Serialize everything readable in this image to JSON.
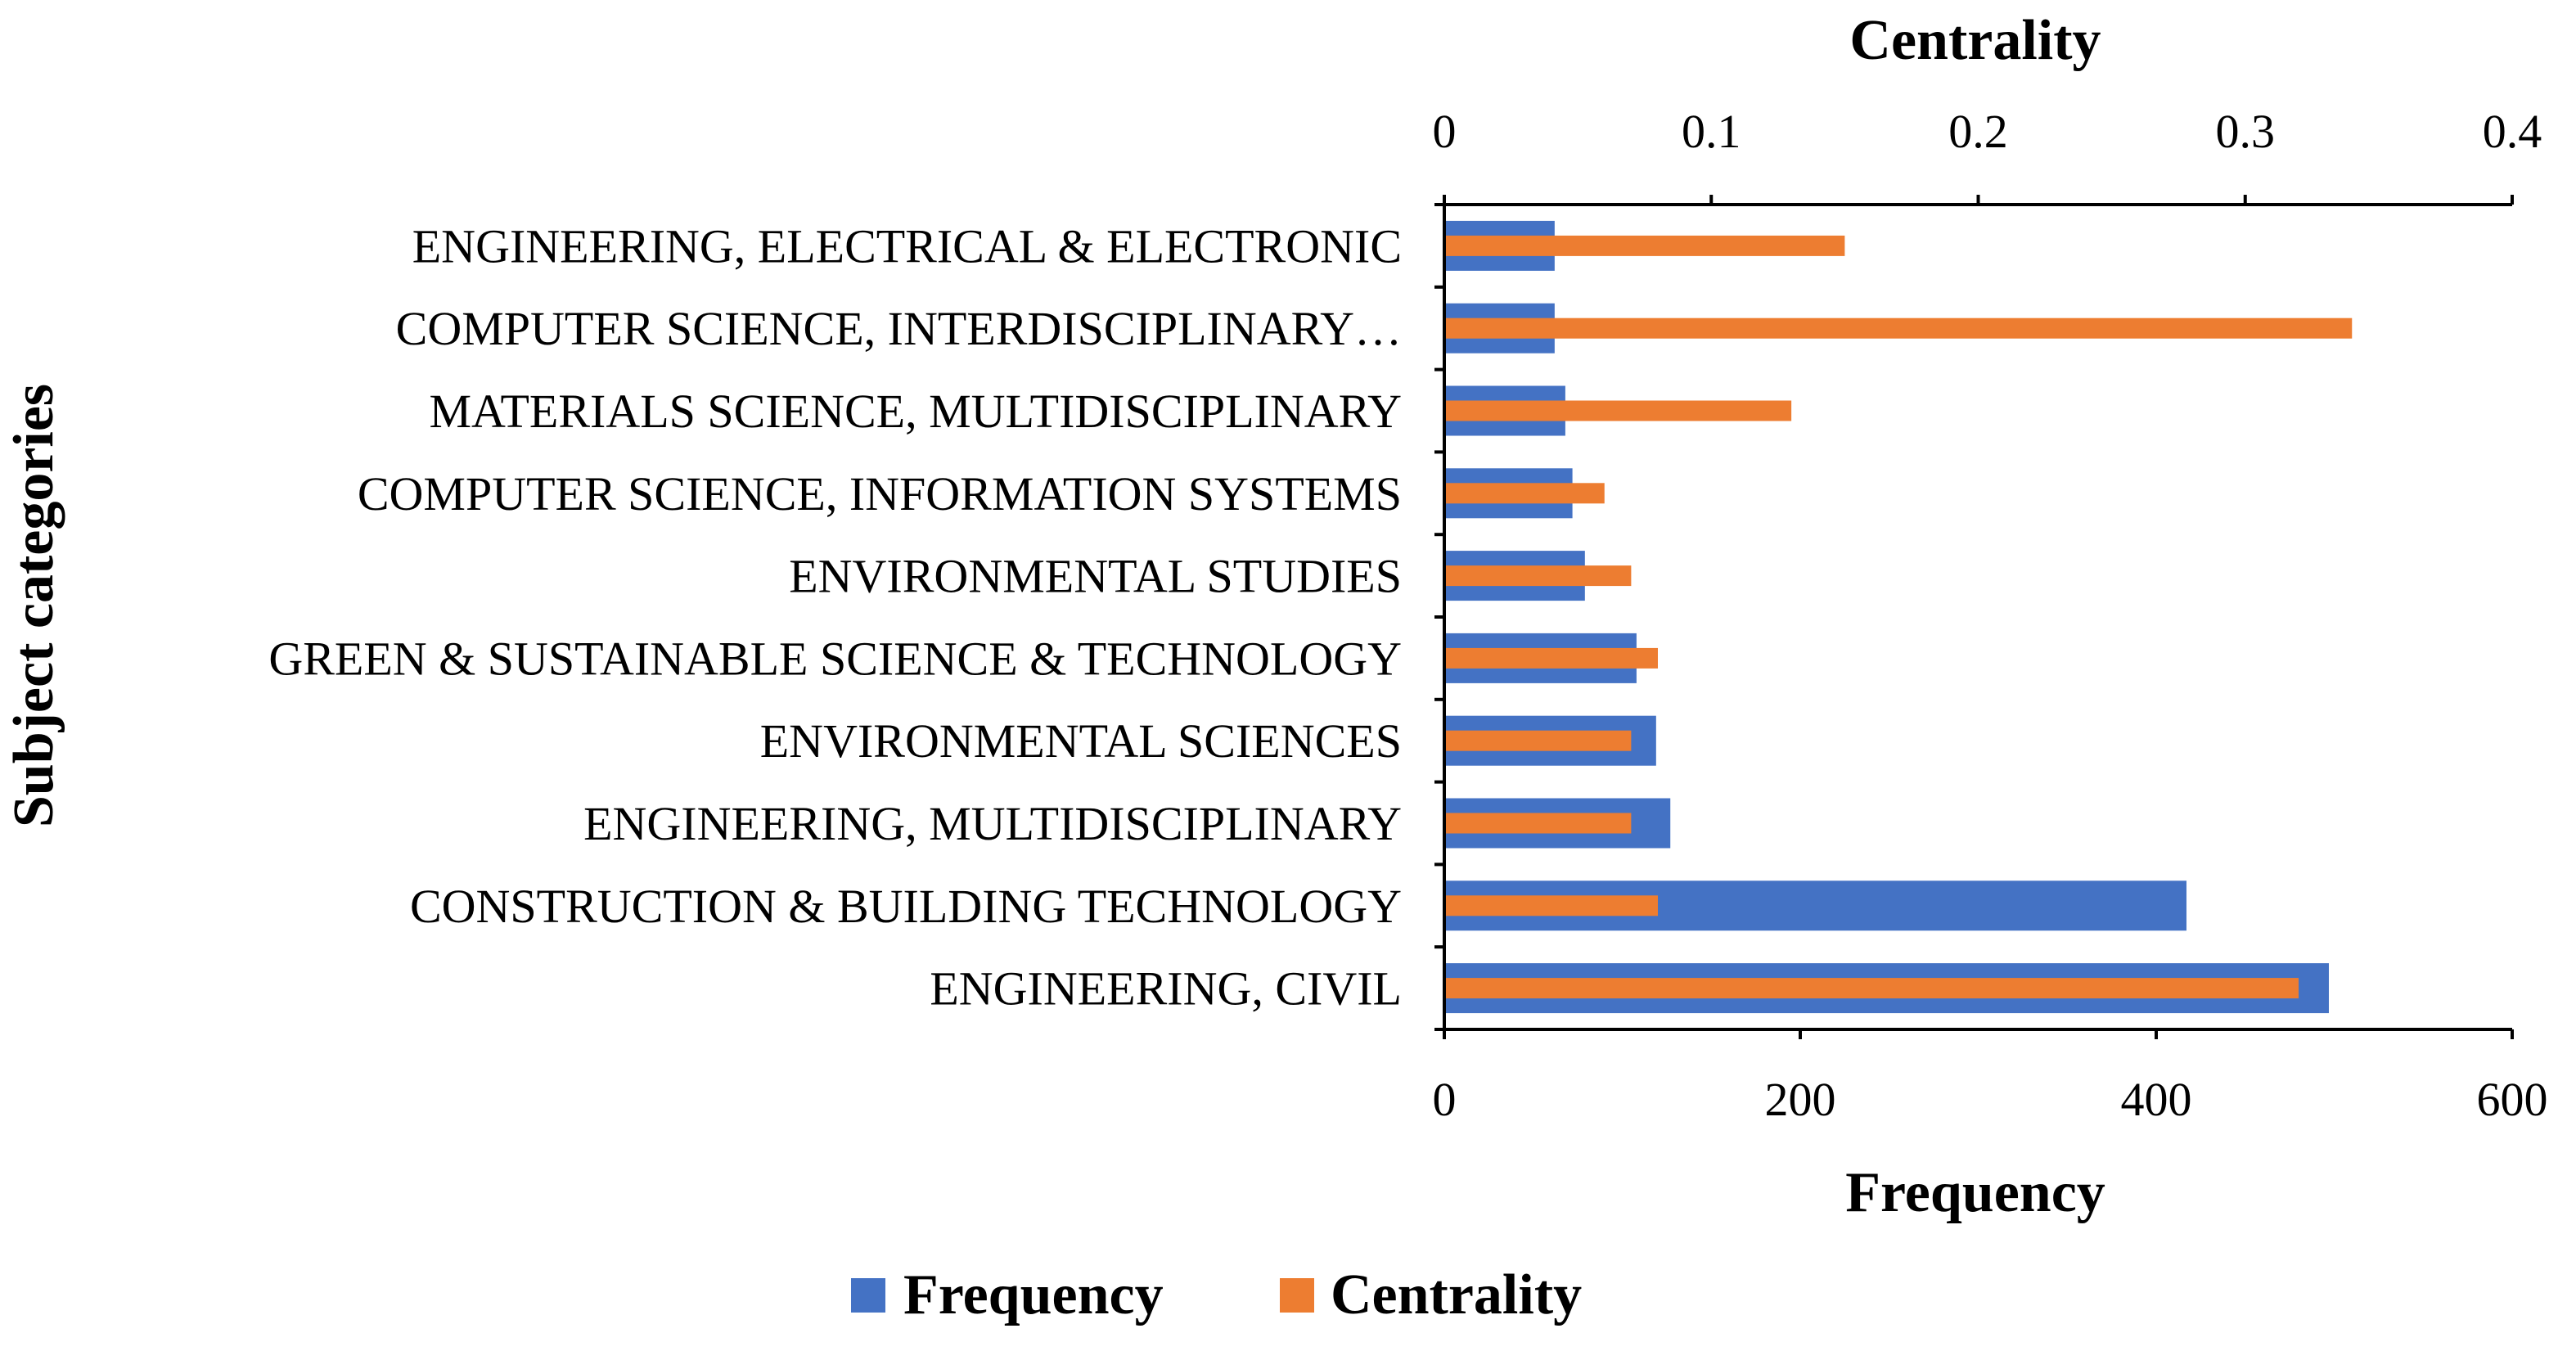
{
  "chart_data": {
    "type": "bar",
    "orientation": "horizontal",
    "categories": [
      "ENGINEERING, ELECTRICAL & ELECTRONIC",
      "COMPUTER SCIENCE, INTERDISCIPLINARY…",
      "MATERIALS SCIENCE, MULTIDISCIPLINARY",
      "COMPUTER SCIENCE, INFORMATION SYSTEMS",
      "ENVIRONMENTAL STUDIES",
      "GREEN & SUSTAINABLE SCIENCE & TECHNOLOGY",
      "ENVIRONMENTAL SCIENCES",
      "ENGINEERING, MULTIDISCIPLINARY",
      "CONSTRUCTION & BUILDING TECHNOLOGY",
      "ENGINEERING, CIVIL"
    ],
    "series": [
      {
        "name": "Frequency",
        "axis": "bottom",
        "color": "#4472C4",
        "values": [
          62,
          62,
          68,
          72,
          79,
          108,
          119,
          127,
          417,
          497
        ]
      },
      {
        "name": "Centrality",
        "axis": "top",
        "color": "#ED7D31",
        "values": [
          0.15,
          0.34,
          0.13,
          0.06,
          0.07,
          0.08,
          0.07,
          0.07,
          0.08,
          0.32
        ]
      }
    ],
    "x_bottom": {
      "title": "Frequency",
      "range": [
        0,
        600
      ],
      "ticks": [
        0,
        200,
        400,
        600
      ],
      "tick_labels": [
        "0",
        "200",
        "400",
        "600"
      ]
    },
    "x_top": {
      "title": "Centrality",
      "range": [
        0,
        0.4
      ],
      "ticks": [
        0,
        0.1,
        0.2,
        0.3,
        0.4
      ],
      "tick_labels": [
        "0",
        "0.1",
        "0.2",
        "0.3",
        "0.4"
      ]
    },
    "ylabel": "Subject categories",
    "grid": false,
    "legend": {
      "position": "bottom",
      "entries": [
        "Frequency",
        "Centrality"
      ]
    }
  }
}
